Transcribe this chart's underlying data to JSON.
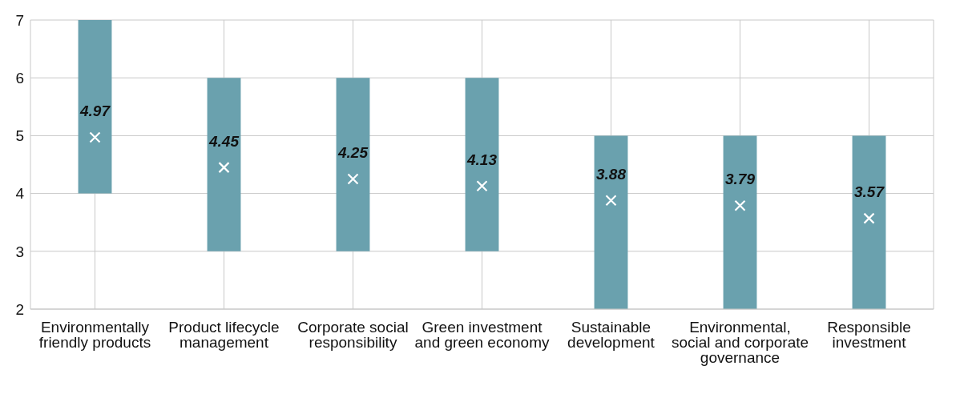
{
  "chart_data": {
    "type": "bar",
    "categories": [
      "Environmentally friendly products",
      "Product lifecycle management",
      "Corporate social responsibility",
      "Green investment and green economy",
      "Sustainable development",
      "Environmental, social and corporate governance",
      "Responsible investment"
    ],
    "series": [
      {
        "color": "#6aa1ae",
        "base": [
          4,
          3,
          3,
          3,
          2,
          2,
          2
        ],
        "values": [
          3,
          3,
          3,
          3,
          3,
          3,
          3
        ]
      },
      {
        "type": "scatter",
        "color": "#ffffff",
        "x": [
          "Environmentally friendly products",
          "Product lifecycle management",
          "Corporate social responsibility",
          "Green investment and green economy",
          "Sustainable development",
          "Environmental, social and corporate governance",
          "Responsible investment"
        ],
        "values": [
          4.97,
          4.45,
          4.25,
          4.13,
          3.88,
          3.79,
          3.57
        ],
        "value_labels": [
          "4.97",
          "4.45",
          "4.25",
          "4.13",
          "3.88",
          "3.79",
          "3.57"
        ]
      }
    ],
    "ylim": [
      2,
      7
    ],
    "yticks": [
      2,
      3,
      4,
      5,
      6,
      7
    ],
    "grid": true,
    "marker": "cross"
  }
}
